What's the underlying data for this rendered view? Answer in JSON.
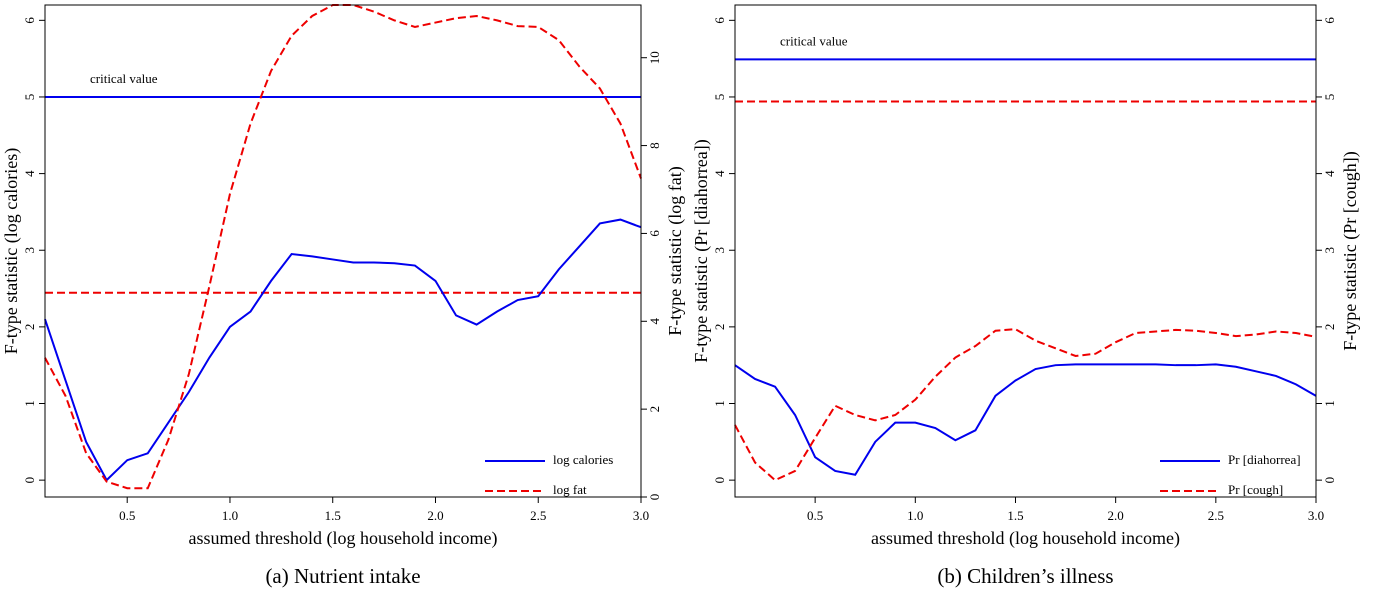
{
  "chart_data": [
    {
      "type": "line",
      "caption": "(a) Nutrient intake",
      "xlabel": "assumed threshold (log household income)",
      "ylabel": "F-type statistic (log calories)",
      "y2label": "F-type statistic (log fat)",
      "annotation": "critical value",
      "x": [
        0.1,
        0.2,
        0.3,
        0.4,
        0.5,
        0.6,
        0.7,
        0.8,
        0.9,
        1.0,
        1.1,
        1.2,
        1.3,
        1.4,
        1.5,
        1.6,
        1.7,
        1.8,
        1.9,
        2.0,
        2.1,
        2.2,
        2.3,
        2.4,
        2.5,
        2.6,
        2.7,
        2.8,
        2.9,
        3.0
      ],
      "series": [
        {
          "name": "log calories",
          "color": "#0000ee",
          "axis": "y",
          "dashed": false,
          "values": [
            2.1,
            1.3,
            0.5,
            0.0,
            0.26,
            0.35,
            0.75,
            1.15,
            1.6,
            2.0,
            2.2,
            2.6,
            2.95,
            2.92,
            2.88,
            2.84,
            2.84,
            2.83,
            2.8,
            2.6,
            2.15,
            2.03,
            2.2,
            2.35,
            2.4,
            2.75,
            3.05,
            3.35,
            3.4,
            3.3
          ]
        },
        {
          "name": "log fat",
          "color": "#ee0000",
          "axis": "y2",
          "dashed": true,
          "values": [
            3.17,
            2.3,
            1.0,
            0.35,
            0.2,
            0.2,
            1.3,
            2.8,
            4.8,
            6.9,
            8.5,
            9.7,
            10.5,
            10.95,
            11.2,
            11.2,
            11.05,
            10.85,
            10.7,
            10.8,
            10.9,
            10.95,
            10.85,
            10.72,
            10.7,
            10.4,
            9.8,
            9.3,
            8.5,
            7.25
          ]
        }
      ],
      "critical_values": [
        {
          "value": 5,
          "axis": "y",
          "color": "#0000ee",
          "dashed": false
        },
        {
          "value": 4.65,
          "axis": "y2",
          "color": "#ee0000",
          "dashed": true
        }
      ],
      "xlim": [
        0.1,
        3.0
      ],
      "xticks": [
        0.5,
        {
          "value": 1,
          "label": "1.0"
        },
        1.5,
        {
          "value": 2,
          "label": "2.0"
        },
        2.5,
        {
          "value": 3,
          "label": "3.0"
        }
      ],
      "ylim": [
        -0.22,
        6.2
      ],
      "yticks": [
        0,
        1,
        2,
        3,
        4,
        5,
        6
      ],
      "y2lim": [
        0,
        11.2
      ],
      "y2ticks": [
        0,
        2,
        4,
        6,
        8,
        10
      ],
      "legend": "lower right"
    },
    {
      "type": "line",
      "caption": "(b) Children’s illness",
      "xlabel": "assumed threshold (log household income)",
      "ylabel": "F-type statistic (Pr [diahorrea])",
      "y2label": "F-type statistic (Pr [cough])",
      "annotation": "critical value",
      "x": [
        0.1,
        0.2,
        0.3,
        0.4,
        0.5,
        0.6,
        0.7,
        0.8,
        0.9,
        1.0,
        1.1,
        1.2,
        1.3,
        1.4,
        1.5,
        1.6,
        1.7,
        1.8,
        1.9,
        2.0,
        2.1,
        2.2,
        2.3,
        2.4,
        2.5,
        2.6,
        2.7,
        2.8,
        2.9,
        3.0
      ],
      "series": [
        {
          "name": "Pr [diahorrea]",
          "color": "#0000ee",
          "axis": "y",
          "dashed": false,
          "values": [
            1.5,
            1.32,
            1.22,
            0.85,
            0.3,
            0.12,
            0.07,
            0.5,
            0.75,
            0.75,
            0.68,
            0.52,
            0.65,
            1.1,
            1.3,
            1.45,
            1.5,
            1.51,
            1.51,
            1.51,
            1.51,
            1.51,
            1.5,
            1.5,
            1.51,
            1.48,
            1.42,
            1.36,
            1.25,
            1.1
          ]
        },
        {
          "name": "Pr [cough]",
          "color": "#ee0000",
          "axis": "y2",
          "dashed": true,
          "values": [
            0.72,
            0.23,
            0.0,
            0.12,
            0.55,
            0.97,
            0.85,
            0.78,
            0.85,
            1.05,
            1.35,
            1.6,
            1.75,
            1.95,
            1.97,
            1.82,
            1.72,
            1.62,
            1.65,
            1.8,
            1.92,
            1.94,
            1.96,
            1.95,
            1.92,
            1.88,
            1.9,
            1.94,
            1.92,
            1.87
          ]
        }
      ],
      "critical_values": [
        {
          "value": 5.49,
          "axis": "y",
          "color": "#0000ee",
          "dashed": false
        },
        {
          "value": 4.94,
          "axis": "y2",
          "color": "#ee0000",
          "dashed": true
        }
      ],
      "xlim": [
        0.1,
        3.0
      ],
      "xticks": [
        0.5,
        {
          "value": 1,
          "label": "1.0"
        },
        1.5,
        {
          "value": 2,
          "label": "2.0"
        },
        2.5,
        {
          "value": 3,
          "label": "3.0"
        }
      ],
      "ylim": [
        -0.22,
        6.2
      ],
      "yticks": [
        0,
        1,
        2,
        3,
        4,
        5,
        6
      ],
      "y2lim": [
        -0.22,
        6.2
      ],
      "y2ticks": [
        0,
        1,
        2,
        3,
        4,
        5,
        6
      ],
      "legend": "lower right"
    }
  ]
}
